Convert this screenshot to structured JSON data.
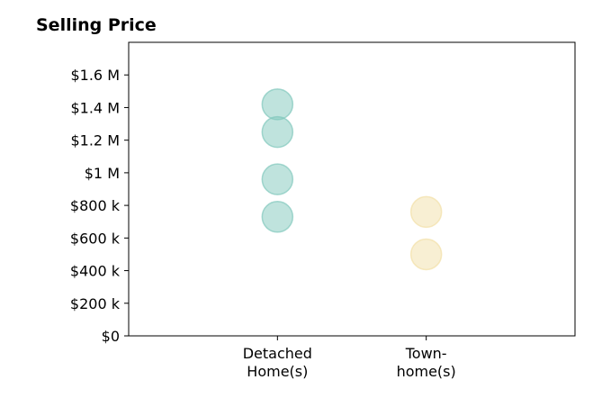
{
  "chart_data": {
    "type": "scatter",
    "title": "Selling Price",
    "xlabel": "",
    "ylabel": "",
    "categories": [
      [
        "Detached",
        "Home(s)"
      ],
      [
        "Town-",
        "home(s)"
      ]
    ],
    "ylim": [
      0,
      1800000
    ],
    "yticks": [
      {
        "value": 0,
        "label": "$0"
      },
      {
        "value": 200000,
        "label": "$200 k"
      },
      {
        "value": 400000,
        "label": "$400 k"
      },
      {
        "value": 600000,
        "label": "$600 k"
      },
      {
        "value": 800000,
        "label": "$800 k"
      },
      {
        "value": 1000000,
        "label": "$1 M"
      },
      {
        "value": 1200000,
        "label": "$1.2 M"
      },
      {
        "value": 1400000,
        "label": "$1.4 M"
      },
      {
        "value": 1600000,
        "label": "$1.6 M"
      }
    ],
    "grid": false,
    "series": [
      {
        "category_index": 0,
        "color": "#80c7bc",
        "values": [
          1420000,
          1250000,
          960000,
          730000
        ]
      },
      {
        "category_index": 1,
        "color": "#f2dfa7",
        "values": [
          760000,
          500000
        ]
      }
    ]
  }
}
